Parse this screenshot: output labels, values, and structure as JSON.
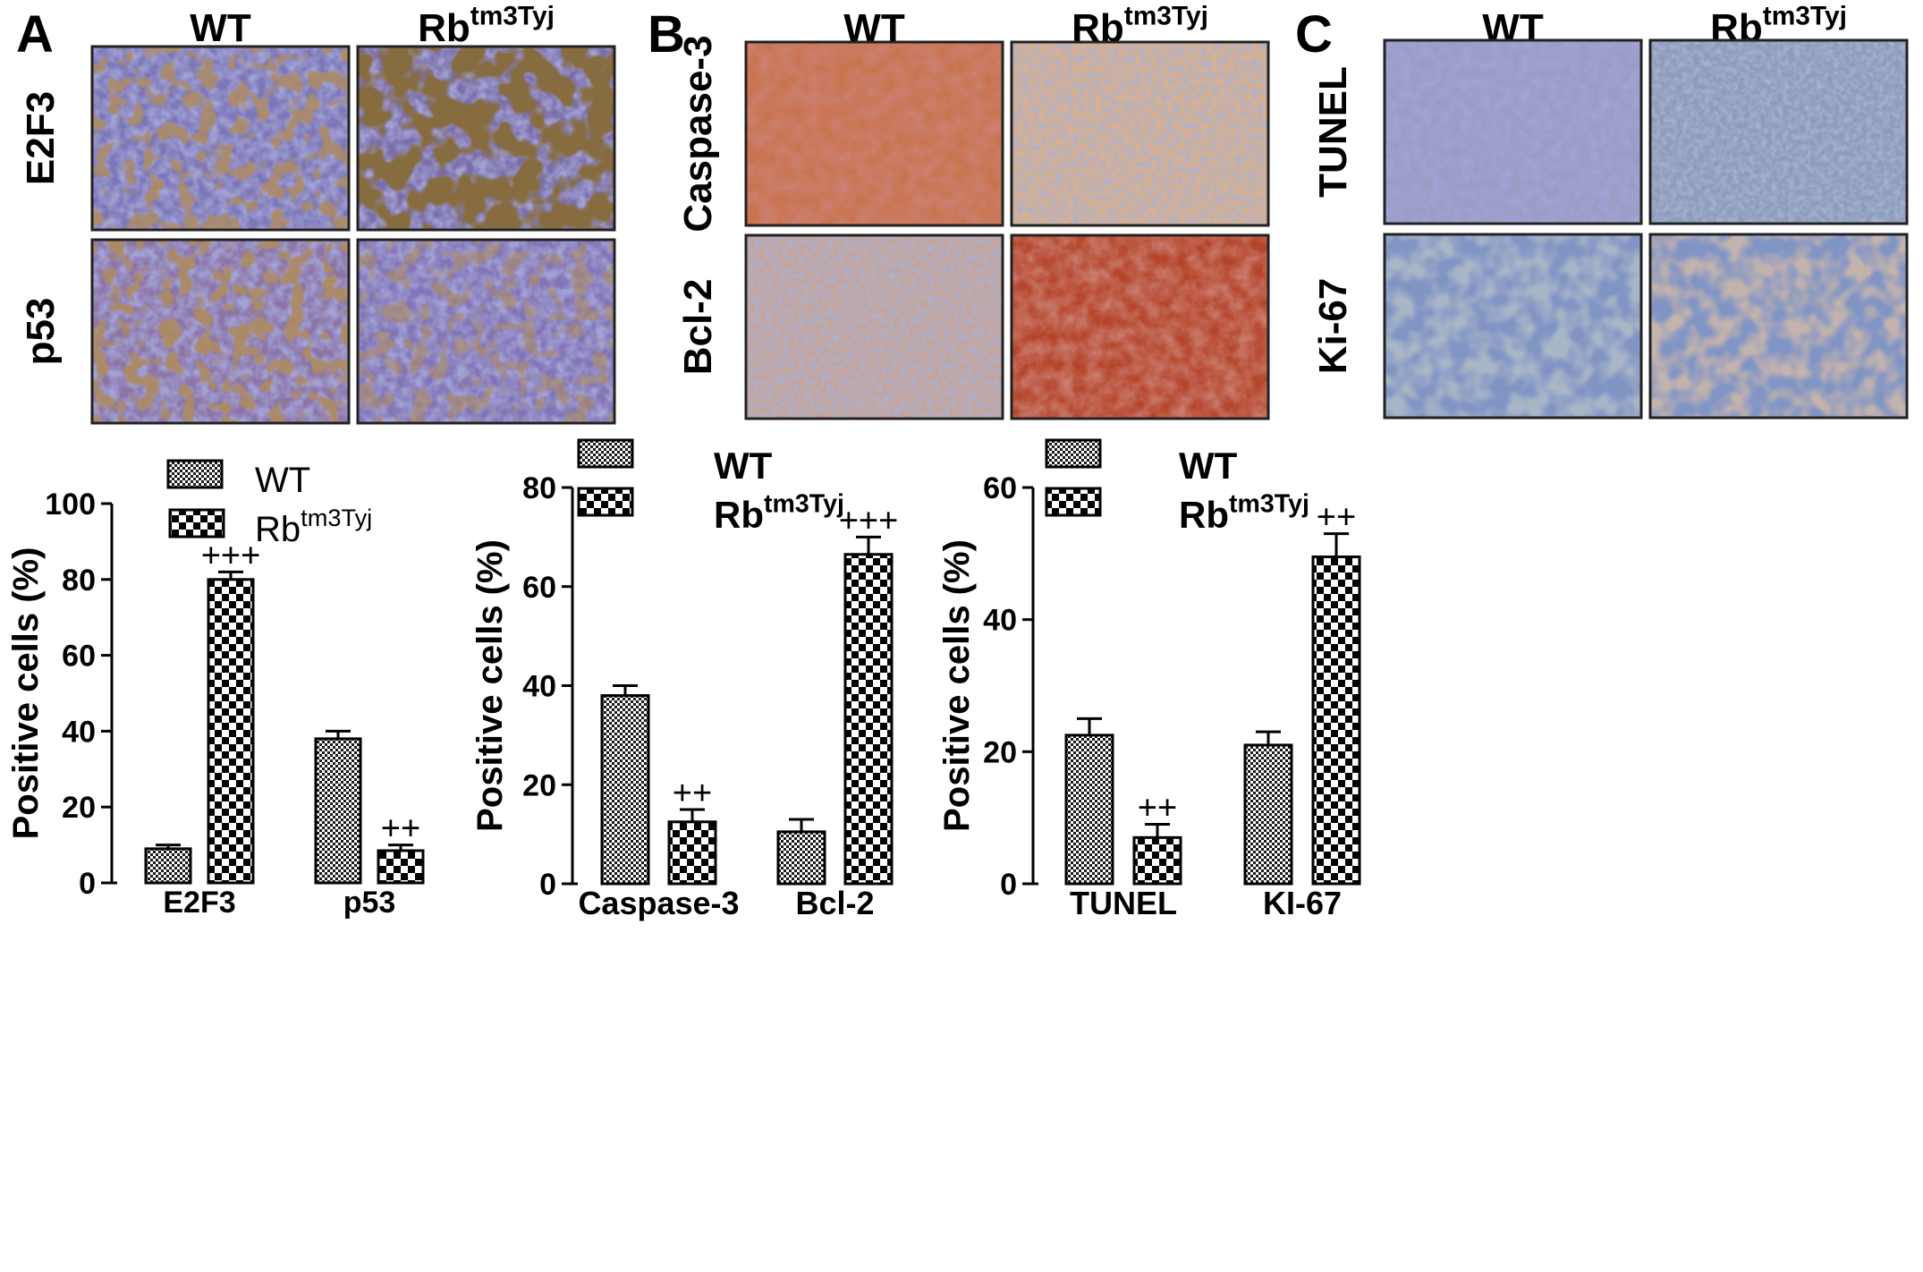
{
  "figure": {
    "panels": [
      {
        "letter": "A",
        "wt_label": "WT",
        "rb_base": "Rb",
        "rb_sup": "tm3Tyj",
        "rows": [
          {
            "label": "E2F3",
            "wt_stain": "E2F3 WT",
            "rb_stain": "E2F3 Rb"
          },
          {
            "label": "p53",
            "wt_stain": "p53 WT",
            "rb_stain": "p53 Rb"
          }
        ]
      },
      {
        "letter": "B",
        "wt_label": "WT",
        "rb_base": "Rb",
        "rb_sup": "tm3Tyj",
        "rows": [
          {
            "label": "Caspase-3",
            "wt_stain": "Caspase-3 WT",
            "rb_stain": "Caspase-3 Rb"
          },
          {
            "label": "Bcl-2",
            "wt_stain": "Bcl-2 WT",
            "rb_stain": "Bcl-2 Rb"
          }
        ]
      },
      {
        "letter": "C",
        "wt_label": "WT",
        "rb_base": "Rb",
        "rb_sup": "tm3Tyj",
        "rows": [
          {
            "label": "TUNEL",
            "wt_stain": "TUNEL WT",
            "rb_stain": "TUNEL Rb"
          },
          {
            "label": "Ki-67",
            "wt_stain": "Ki-67 WT",
            "rb_stain": "Ki-67 Rb"
          }
        ]
      }
    ],
    "pattern_colors": {
      "wt": "#1a1a1a",
      "rb": "#000000",
      "bg": "#ffffff"
    }
  },
  "chart_data": [
    {
      "type": "bar",
      "categories": [
        "E2F3",
        "p53"
      ],
      "series": [
        {
          "name": "WT",
          "values": [
            9,
            38
          ],
          "errors": [
            1,
            2
          ],
          "annotations": [
            "",
            ""
          ]
        },
        {
          "name": "Rbtm3Tyj",
          "name_base": "Rb",
          "name_sup": "tm3Tyj",
          "values": [
            80,
            8.5
          ],
          "errors": [
            2,
            1.5
          ],
          "annotations": [
            "+++",
            "++"
          ]
        }
      ],
      "xlabel": "",
      "ylabel": "Positive cells (%)",
      "ylim": [
        0,
        100
      ],
      "yticks": [
        0,
        20,
        40,
        60,
        80,
        100
      ],
      "legend": "top-left",
      "grid": false
    },
    {
      "type": "bar",
      "categories": [
        "Caspase-3",
        "Bcl-2"
      ],
      "series": [
        {
          "name": "WT",
          "values": [
            38,
            10.5
          ],
          "errors": [
            2,
            2.5
          ],
          "annotations": [
            "",
            ""
          ]
        },
        {
          "name": "Rbtm3Tyj",
          "name_base": "Rb",
          "name_sup": "tm3Tyj",
          "values": [
            12.5,
            66.5
          ],
          "errors": [
            2.5,
            3.5
          ],
          "annotations": [
            "++",
            "+++"
          ]
        }
      ],
      "xlabel": "",
      "ylabel": "Positive cells (%)",
      "ylim": [
        0,
        80
      ],
      "yticks": [
        0,
        20,
        40,
        60,
        80
      ],
      "legend": "top-left",
      "grid": false
    },
    {
      "type": "bar",
      "categories": [
        "TUNEL",
        "KI-67"
      ],
      "series": [
        {
          "name": "WT",
          "values": [
            22.5,
            21
          ],
          "errors": [
            2.5,
            2
          ],
          "annotations": [
            "",
            ""
          ]
        },
        {
          "name": "Rbtm3Tyj",
          "name_base": "Rb",
          "name_sup": "tm3Tyj",
          "values": [
            7,
            49.5
          ],
          "errors": [
            2,
            3.5
          ],
          "annotations": [
            "++",
            "++"
          ]
        }
      ],
      "xlabel": "",
      "ylabel": "Positive cells (%)",
      "ylim": [
        0,
        60
      ],
      "yticks": [
        0,
        20,
        40,
        60
      ],
      "legend": "top-left",
      "grid": false
    }
  ]
}
